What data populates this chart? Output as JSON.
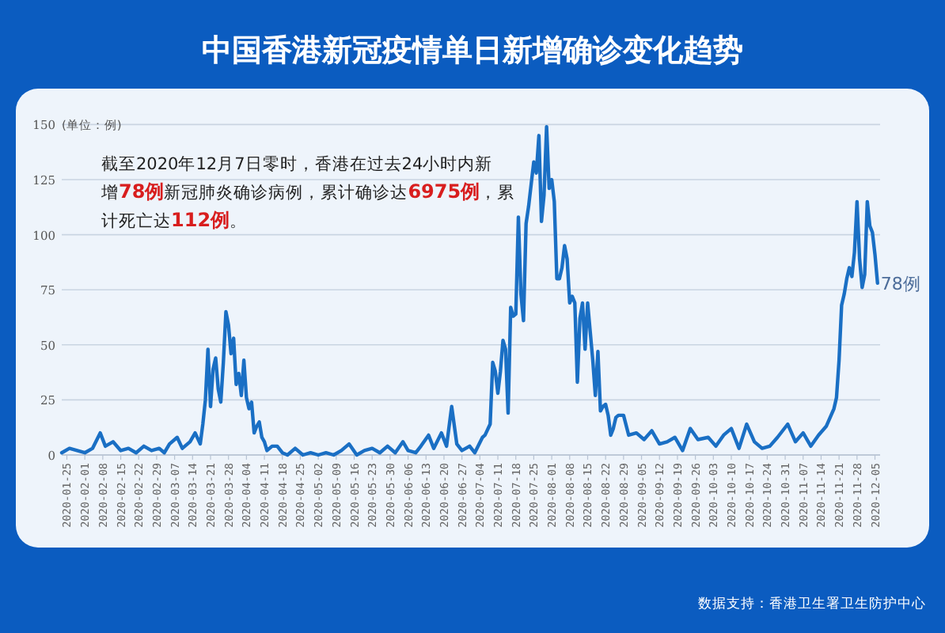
{
  "chart_data": {
    "type": "line",
    "title": "中国香港新冠疫情单日新增确诊变化趋势",
    "ylabel": "(单位：例)",
    "color": "#1a6fc4",
    "grid": "y",
    "xlim": [
      "2020-01-23",
      "2020-12-07"
    ],
    "xticks": [
      "2020-01-25",
      "2020-02-01",
      "2020-02-08",
      "2020-02-15",
      "2020-02-22",
      "2020-02-29",
      "2020-03-07",
      "2020-03-14",
      "2020-03-21",
      "2020-03-28",
      "2020-04-04",
      "2020-04-11",
      "2020-04-18",
      "2020-04-25",
      "2020-05-02",
      "2020-05-09",
      "2020-05-16",
      "2020-05-23",
      "2020-05-30",
      "2020-06-06",
      "2020-06-13",
      "2020-06-20",
      "2020-06-27",
      "2020-07-04",
      "2020-07-11",
      "2020-07-18",
      "2020-07-25",
      "2020-08-01",
      "2020-08-08",
      "2020-08-15",
      "2020-08-22",
      "2020-08-29",
      "2020-09-05",
      "2020-09-12",
      "2020-09-19",
      "2020-09-26",
      "2020-10-03",
      "2020-10-10",
      "2020-10-17",
      "2020-10-24",
      "2020-10-31",
      "2020-11-07",
      "2020-11-14",
      "2020-11-21",
      "2020-11-28",
      "2020-12-05"
    ],
    "ylim": [
      0,
      150
    ],
    "yticks": [
      0,
      25,
      50,
      75,
      100,
      125,
      150
    ],
    "x": [
      "2020-01-23",
      "2020-01-26",
      "2020-01-29",
      "2020-02-01",
      "2020-02-04",
      "2020-02-07",
      "2020-02-09",
      "2020-02-12",
      "2020-02-15",
      "2020-02-18",
      "2020-02-21",
      "2020-02-24",
      "2020-02-27",
      "2020-03-01",
      "2020-03-03",
      "2020-03-05",
      "2020-03-08",
      "2020-03-10",
      "2020-03-13",
      "2020-03-15",
      "2020-03-17",
      "2020-03-18",
      "2020-03-19",
      "2020-03-20",
      "2020-03-21",
      "2020-03-22",
      "2020-03-23",
      "2020-03-24",
      "2020-03-25",
      "2020-03-26",
      "2020-03-27",
      "2020-03-28",
      "2020-03-29",
      "2020-03-30",
      "2020-03-31",
      "2020-04-01",
      "2020-04-02",
      "2020-04-03",
      "2020-04-04",
      "2020-04-05",
      "2020-04-06",
      "2020-04-07",
      "2020-04-08",
      "2020-04-09",
      "2020-04-10",
      "2020-04-11",
      "2020-04-12",
      "2020-04-14",
      "2020-04-16",
      "2020-04-18",
      "2020-04-20",
      "2020-04-23",
      "2020-04-26",
      "2020-04-29",
      "2020-05-02",
      "2020-05-05",
      "2020-05-08",
      "2020-05-11",
      "2020-05-14",
      "2020-05-17",
      "2020-05-20",
      "2020-05-23",
      "2020-05-26",
      "2020-05-29",
      "2020-06-01",
      "2020-06-04",
      "2020-06-06",
      "2020-06-09",
      "2020-06-11",
      "2020-06-14",
      "2020-06-16",
      "2020-06-19",
      "2020-06-21",
      "2020-06-23",
      "2020-06-25",
      "2020-06-27",
      "2020-06-30",
      "2020-07-02",
      "2020-07-05",
      "2020-07-06",
      "2020-07-08",
      "2020-07-09",
      "2020-07-10",
      "2020-07-11",
      "2020-07-12",
      "2020-07-13",
      "2020-07-14",
      "2020-07-15",
      "2020-07-16",
      "2020-07-17",
      "2020-07-18",
      "2020-07-19",
      "2020-07-20",
      "2020-07-21",
      "2020-07-22",
      "2020-07-23",
      "2020-07-24",
      "2020-07-25",
      "2020-07-26",
      "2020-07-27",
      "2020-07-28",
      "2020-07-29",
      "2020-07-30",
      "2020-07-31",
      "2020-08-01",
      "2020-08-02",
      "2020-08-03",
      "2020-08-04",
      "2020-08-05",
      "2020-08-06",
      "2020-08-07",
      "2020-08-08",
      "2020-08-09",
      "2020-08-10",
      "2020-08-11",
      "2020-08-12",
      "2020-08-13",
      "2020-08-14",
      "2020-08-15",
      "2020-08-16",
      "2020-08-17",
      "2020-08-18",
      "2020-08-19",
      "2020-08-20",
      "2020-08-21",
      "2020-08-22",
      "2020-08-23",
      "2020-08-24",
      "2020-08-25",
      "2020-08-26",
      "2020-08-27",
      "2020-08-29",
      "2020-08-31",
      "2020-09-03",
      "2020-09-06",
      "2020-09-09",
      "2020-09-12",
      "2020-09-15",
      "2020-09-18",
      "2020-09-21",
      "2020-09-24",
      "2020-09-27",
      "2020-10-01",
      "2020-10-04",
      "2020-10-07",
      "2020-10-10",
      "2020-10-13",
      "2020-10-16",
      "2020-10-19",
      "2020-10-22",
      "2020-10-25",
      "2020-10-28",
      "2020-11-01",
      "2020-11-04",
      "2020-11-07",
      "2020-11-10",
      "2020-11-13",
      "2020-11-16",
      "2020-11-19",
      "2020-11-20",
      "2020-11-21",
      "2020-11-22",
      "2020-11-23",
      "2020-11-24",
      "2020-11-25",
      "2020-11-26",
      "2020-11-27",
      "2020-11-28",
      "2020-11-29",
      "2020-11-30",
      "2020-12-01",
      "2020-12-02",
      "2020-12-03",
      "2020-12-04",
      "2020-12-05",
      "2020-12-06"
    ],
    "values": [
      1,
      3,
      2,
      1,
      3,
      10,
      4,
      6,
      2,
      3,
      1,
      4,
      2,
      3,
      1,
      5,
      8,
      3,
      6,
      10,
      5,
      14,
      25,
      48,
      22,
      39,
      44,
      30,
      24,
      42,
      65,
      59,
      46,
      53,
      32,
      37,
      27,
      43,
      26,
      21,
      24,
      10,
      13,
      15,
      8,
      6,
      2,
      4,
      4,
      1,
      0,
      3,
      0,
      1,
      0,
      1,
      0,
      2,
      5,
      0,
      2,
      3,
      1,
      4,
      1,
      6,
      2,
      1,
      4,
      9,
      3,
      10,
      4,
      22,
      5,
      2,
      4,
      1,
      8,
      9,
      14,
      42,
      38,
      28,
      38,
      52,
      48,
      19,
      67,
      63,
      64,
      108,
      73,
      61,
      105,
      113,
      123,
      133,
      128,
      145,
      106,
      118,
      149,
      121,
      125,
      115,
      80,
      80,
      85,
      95,
      89,
      69,
      72,
      69,
      33,
      62,
      69,
      48,
      69,
      56,
      43,
      27,
      47,
      20,
      22,
      23,
      18,
      9,
      12,
      17,
      18,
      18,
      9,
      10,
      7,
      11,
      5,
      6,
      8,
      2,
      12,
      7,
      8,
      4,
      9,
      12,
      3,
      14,
      6,
      3,
      4,
      8,
      14,
      6,
      10,
      4,
      9,
      13,
      21,
      26,
      43,
      68,
      73,
      80,
      85,
      81,
      92,
      115,
      89,
      76,
      82,
      115,
      104,
      101,
      91,
      78
    ],
    "annotations": [
      "截至2020年12月7日零时，香港在过去24小时内新增78例新冠肺炎确诊病例，累计确诊达6975例，累计死亡达112例。",
      {
        "text": "78例",
        "x": "2020-12-06",
        "y": 78
      },
      "数据支持：香港卫生署卫生防护中心"
    ]
  }
}
